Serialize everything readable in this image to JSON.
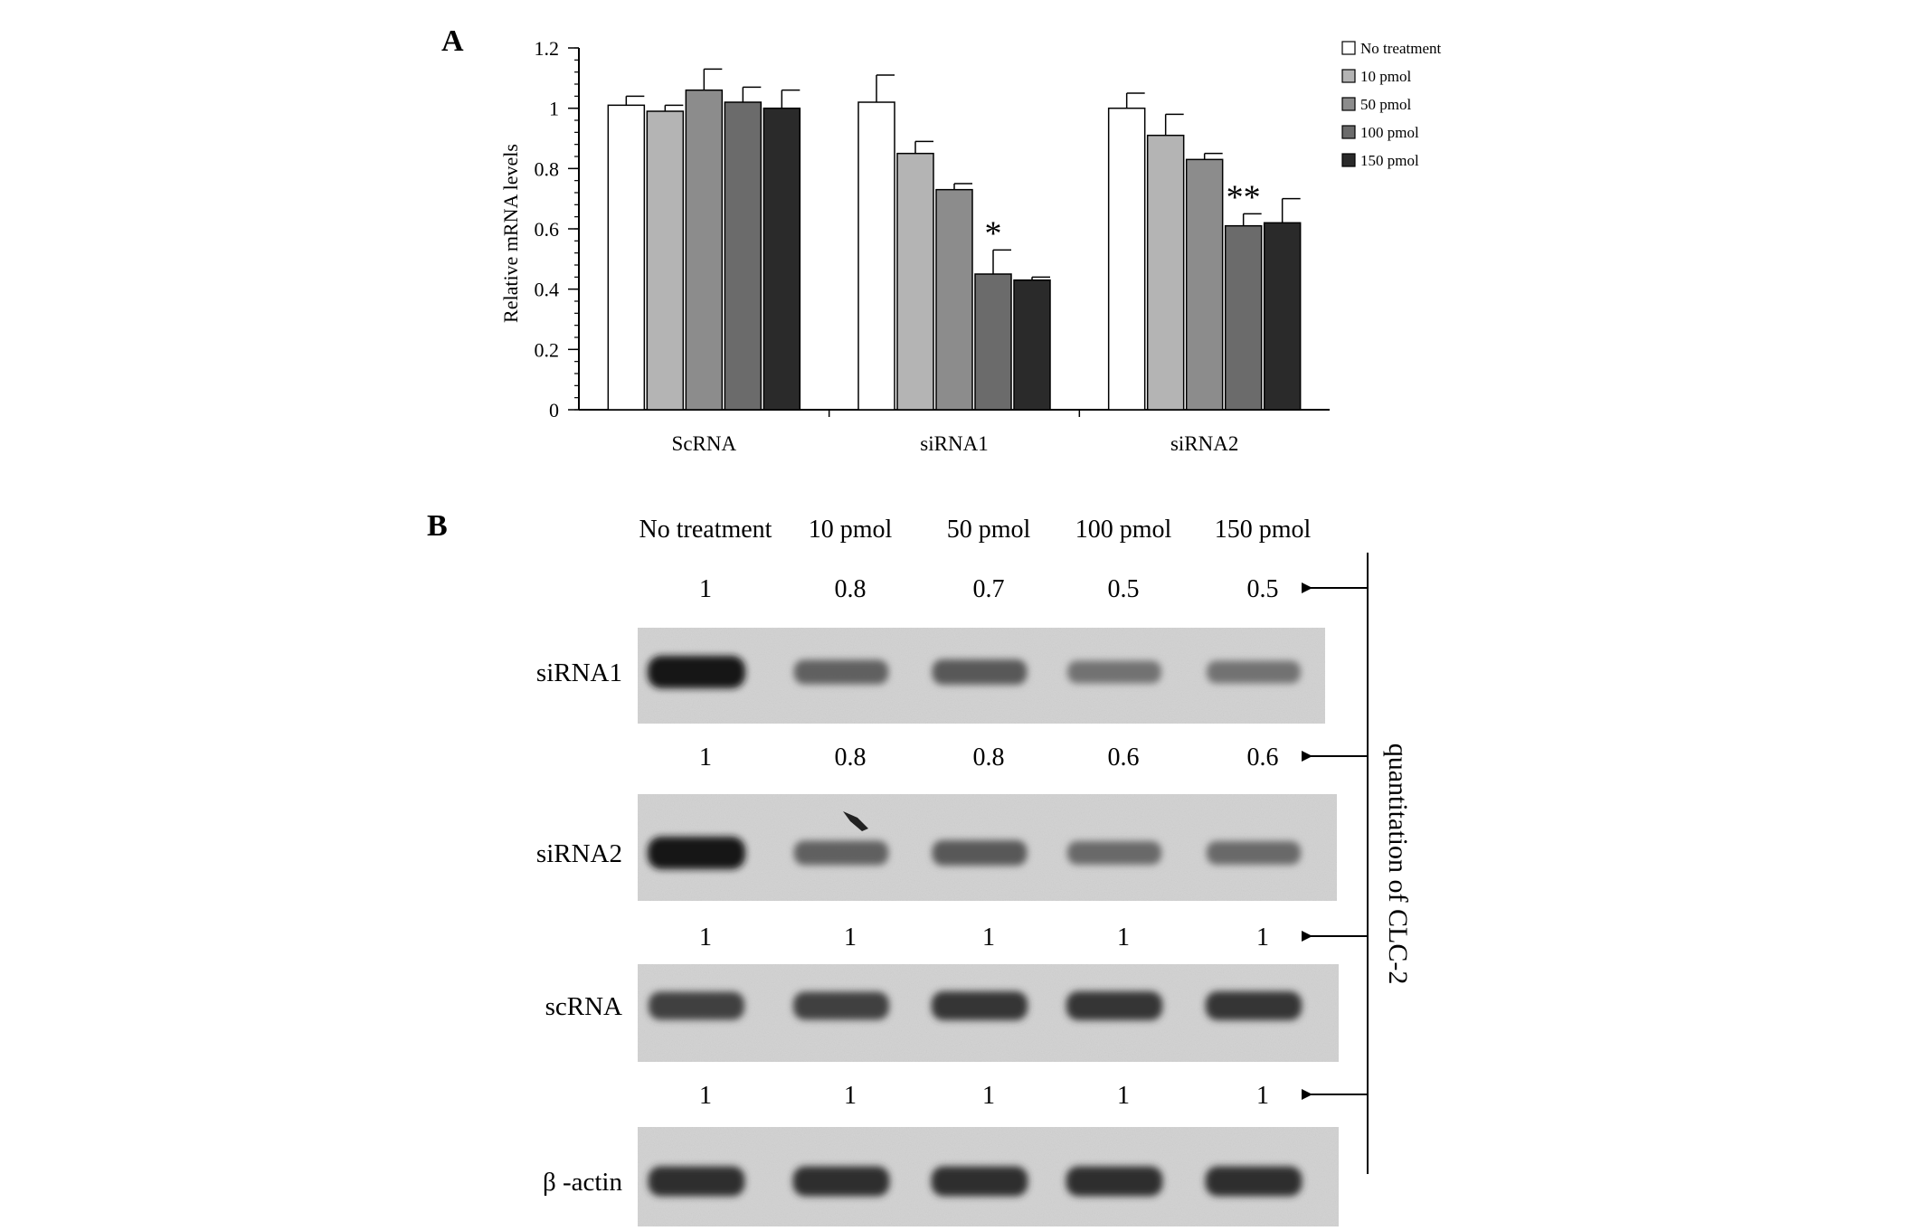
{
  "panel_a": {
    "letter": "A"
  },
  "panel_b": {
    "letter": "B"
  },
  "chart_data": {
    "type": "bar",
    "categories": [
      "ScRNA",
      "siRNA1",
      "siRNA2"
    ],
    "series": [
      {
        "name": "No treatment",
        "values": [
          1.01,
          1.02,
          1.0
        ],
        "errors": [
          0.03,
          0.09,
          0.05
        ],
        "color": "#ffffff"
      },
      {
        "name": "10 pmol",
        "values": [
          0.99,
          0.85,
          0.91
        ],
        "errors": [
          0.02,
          0.04,
          0.07
        ],
        "color": "#b4b4b4"
      },
      {
        "name": "50 pmol",
        "values": [
          1.06,
          0.73,
          0.83
        ],
        "errors": [
          0.07,
          0.02,
          0.02
        ],
        "color": "#8c8c8c"
      },
      {
        "name": "100 pmol",
        "values": [
          1.02,
          0.45,
          0.61
        ],
        "errors": [
          0.05,
          0.08,
          0.04
        ],
        "color": "#6b6b6b"
      },
      {
        "name": "150 pmol",
        "values": [
          1.0,
          0.43,
          0.62
        ],
        "errors": [
          0.06,
          0.01,
          0.08
        ],
        "color": "#2a2a2a"
      }
    ],
    "annotations": [
      {
        "text": "*",
        "category": "siRNA1",
        "series": "100 pmol"
      },
      {
        "text": "**",
        "category": "siRNA2",
        "series": "100 pmol"
      }
    ],
    "title": "",
    "xlabel": "",
    "ylabel": "Relative mRNA levels",
    "ylim": [
      0,
      1.2
    ],
    "yticks": [
      "0",
      "0.2",
      "0.4",
      "0.6",
      "0.8",
      "1",
      "1.2"
    ],
    "legend": "top-right",
    "grid": false
  },
  "blot": {
    "columns": [
      "No treatment",
      "10 pmol",
      "50 pmol",
      "100 pmol",
      "150 pmol"
    ],
    "side_label": "quantitation of CLC-2",
    "rows": [
      {
        "label": "siRNA1",
        "values": [
          "1",
          "0.8",
          "0.7",
          "0.5",
          "0.5"
        ],
        "intensity": [
          1.0,
          0.55,
          0.6,
          0.45,
          0.45
        ]
      },
      {
        "label": "siRNA2",
        "values": [
          "1",
          "0.8",
          "0.8",
          "0.6",
          "0.6"
        ],
        "intensity": [
          1.0,
          0.55,
          0.6,
          0.5,
          0.5
        ]
      },
      {
        "label": "scRNA",
        "values": [
          "1",
          "1",
          "1",
          "1",
          "1"
        ],
        "intensity": [
          0.75,
          0.75,
          0.8,
          0.8,
          0.8
        ]
      },
      {
        "label": "β -actin",
        "values": [
          "1",
          "1",
          "1",
          "1",
          "1"
        ],
        "intensity": [
          0.85,
          0.85,
          0.85,
          0.85,
          0.85
        ]
      }
    ]
  }
}
